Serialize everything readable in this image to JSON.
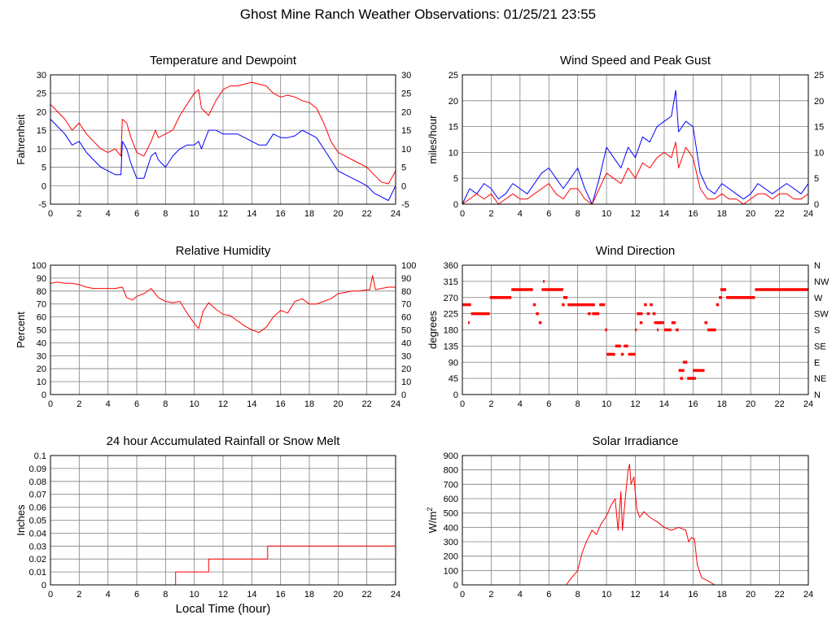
{
  "page": {
    "title": "Ghost Mine Ranch Weather Observations: 01/25/21 23:55"
  },
  "colors": {
    "red": "#ff0000",
    "blue": "#0000ff",
    "grid": "#808080",
    "frame": "#000000"
  },
  "chart_data": [
    {
      "id": "temp",
      "type": "line",
      "title": "Temperature and Dewpoint",
      "ylabel": "Fahrenheit",
      "xlabel": "",
      "xlim": [
        0,
        24
      ],
      "ylim": [
        -5,
        30
      ],
      "xticks": [
        0,
        2,
        4,
        6,
        8,
        10,
        12,
        14,
        16,
        18,
        20,
        22,
        24
      ],
      "yticks": [
        -5,
        0,
        5,
        10,
        15,
        20,
        25,
        30
      ],
      "right_yticks": [
        -5,
        0,
        5,
        10,
        15,
        20,
        25,
        30
      ],
      "grid": true,
      "series": [
        {
          "color": "#ff0000",
          "x": [
            0,
            0.5,
            1,
            1.5,
            2,
            2.5,
            3,
            3.5,
            4,
            4.5,
            4.9,
            5.0,
            5.3,
            5.6,
            6,
            6.5,
            7,
            7.3,
            7.5,
            8,
            8.5,
            9,
            9.5,
            10,
            10.3,
            10.5,
            11,
            11.5,
            12,
            12.5,
            13,
            13.5,
            14,
            14.5,
            15,
            15.5,
            16,
            16.5,
            17,
            17.5,
            18,
            18.5,
            19,
            19.5,
            20,
            20.5,
            21,
            21.5,
            22,
            22.5,
            23,
            23.5,
            24
          ],
          "values": [
            22,
            20,
            18,
            15,
            17,
            14,
            12,
            10,
            9,
            10,
            8,
            18,
            17,
            13,
            9,
            8,
            12,
            15,
            13,
            14,
            15,
            19,
            22,
            25,
            26,
            21,
            19,
            23,
            26,
            27,
            27,
            27.5,
            28,
            27.5,
            27,
            25,
            24,
            24.5,
            24,
            23,
            22.5,
            21,
            17,
            12,
            9,
            8,
            7,
            6,
            5,
            3,
            1,
            0.5,
            4
          ]
        },
        {
          "color": "#0000ff",
          "x": [
            0,
            0.5,
            1,
            1.5,
            2,
            2.5,
            3,
            3.5,
            4,
            4.5,
            4.9,
            5.0,
            5.3,
            5.6,
            6,
            6.5,
            7,
            7.3,
            7.5,
            8,
            8.5,
            9,
            9.5,
            10,
            10.3,
            10.5,
            11,
            11.5,
            12,
            12.5,
            13,
            13.5,
            14,
            14.5,
            15,
            15.5,
            16,
            16.5,
            17,
            17.5,
            18,
            18.5,
            19,
            19.5,
            20,
            20.5,
            21,
            21.5,
            22,
            22.5,
            23,
            23.5,
            24
          ],
          "values": [
            18,
            16,
            14,
            11,
            12,
            9,
            7,
            5,
            4,
            3,
            3,
            12,
            10,
            6,
            2,
            2,
            8,
            9,
            7,
            5,
            8,
            10,
            11,
            11,
            12,
            10,
            15,
            15,
            14,
            14,
            14,
            13,
            12,
            11,
            11,
            14,
            13,
            13,
            13.5,
            15,
            14,
            13,
            10,
            7,
            4,
            3,
            2,
            1,
            0,
            -2,
            -3,
            -4,
            0
          ]
        }
      ]
    },
    {
      "id": "wind",
      "type": "line",
      "title": "Wind Speed and Peak Gust",
      "ylabel": "miles/hour",
      "xlabel": "",
      "xlim": [
        0,
        24
      ],
      "ylim": [
        0,
        25
      ],
      "xticks": [
        0,
        2,
        4,
        6,
        8,
        10,
        12,
        14,
        16,
        18,
        20,
        22,
        24
      ],
      "yticks": [
        0,
        5,
        10,
        15,
        20,
        25
      ],
      "right_yticks": [
        0,
        5,
        10,
        15,
        20,
        25
      ],
      "grid": true,
      "series": [
        {
          "color": "#0000ff",
          "x": [
            0,
            0.5,
            1,
            1.5,
            2,
            2.5,
            3,
            3.5,
            4,
            4.5,
            5,
            5.5,
            6,
            6.5,
            7,
            7.5,
            8,
            8.5,
            9,
            9.5,
            10,
            10.5,
            11,
            11.5,
            12,
            12.5,
            13,
            13.5,
            14,
            14.5,
            14.8,
            15,
            15.5,
            16,
            16.5,
            17,
            17.5,
            18,
            18.5,
            19,
            19.5,
            20,
            20.5,
            21,
            21.5,
            22,
            22.5,
            23,
            23.5,
            24
          ],
          "values": [
            0,
            3,
            2,
            4,
            3,
            1,
            2,
            4,
            3,
            2,
            4,
            6,
            7,
            5,
            3,
            5,
            7,
            3,
            0,
            5,
            11,
            9,
            7,
            11,
            9,
            13,
            12,
            15,
            16,
            17,
            22,
            14,
            16,
            15,
            6,
            3,
            2,
            4,
            3,
            2,
            1,
            2,
            4,
            3,
            2,
            3,
            4,
            3,
            2,
            4
          ]
        },
        {
          "color": "#ff0000",
          "x": [
            0,
            0.5,
            1,
            1.5,
            2,
            2.5,
            3,
            3.5,
            4,
            4.5,
            5,
            5.5,
            6,
            6.5,
            7,
            7.5,
            8,
            8.5,
            9,
            9.5,
            10,
            10.5,
            11,
            11.5,
            12,
            12.5,
            13,
            13.5,
            14,
            14.5,
            14.8,
            15,
            15.5,
            16,
            16.5,
            17,
            17.5,
            18,
            18.5,
            19,
            19.5,
            20,
            20.5,
            21,
            21.5,
            22,
            22.5,
            23,
            23.5,
            24
          ],
          "values": [
            0,
            1,
            2,
            1,
            2,
            0,
            1,
            2,
            1,
            1,
            2,
            3,
            4,
            2,
            1,
            3,
            3,
            1,
            0,
            3,
            6,
            5,
            4,
            7,
            5,
            8,
            7,
            9,
            10,
            9,
            12,
            7,
            11,
            9,
            3,
            1,
            1,
            2,
            1,
            1,
            0,
            1,
            2,
            2,
            1,
            2,
            2,
            1,
            1,
            2
          ]
        }
      ]
    },
    {
      "id": "rh",
      "type": "line",
      "title": "Relative Humidity",
      "ylabel": "Percent",
      "xlabel": "",
      "xlim": [
        0,
        24
      ],
      "ylim": [
        0,
        100
      ],
      "xticks": [
        0,
        2,
        4,
        6,
        8,
        10,
        12,
        14,
        16,
        18,
        20,
        22,
        24
      ],
      "yticks": [
        0,
        10,
        20,
        30,
        40,
        50,
        60,
        70,
        80,
        90,
        100
      ],
      "right_yticks": [
        0,
        10,
        20,
        30,
        40,
        50,
        60,
        70,
        80,
        90,
        100
      ],
      "grid": true,
      "series": [
        {
          "color": "#ff0000",
          "x": [
            0,
            0.5,
            1,
            1.5,
            2,
            2.5,
            3,
            3.5,
            4,
            4.5,
            5,
            5.3,
            5.7,
            6,
            6.5,
            7,
            7.5,
            8,
            8.5,
            9,
            9.5,
            10,
            10.3,
            10.6,
            11,
            11.5,
            12,
            12.5,
            13,
            13.5,
            14,
            14.5,
            15,
            15.5,
            16,
            16.5,
            17,
            17.5,
            18,
            18.5,
            19,
            19.5,
            20,
            20.5,
            21,
            21.5,
            22,
            22.2,
            22.4,
            22.6,
            23,
            23.5,
            24
          ],
          "values": [
            86,
            87,
            86,
            86,
            85,
            83,
            82,
            82,
            82,
            82,
            83,
            75,
            73,
            76,
            78,
            82,
            75,
            72,
            71,
            72,
            63,
            55,
            51,
            64,
            71,
            66,
            62,
            61,
            57,
            53,
            50,
            48,
            52,
            60,
            65,
            63,
            72,
            74,
            70,
            70,
            72,
            74,
            78,
            79,
            80,
            80,
            81,
            81,
            92,
            81,
            82,
            83,
            83
          ]
        }
      ]
    },
    {
      "id": "winddir",
      "type": "scatter",
      "title": "Wind Direction",
      "ylabel": "degrees",
      "xlabel": "",
      "xlim": [
        0,
        24
      ],
      "ylim": [
        0,
        360
      ],
      "xticks": [
        0,
        2,
        4,
        6,
        8,
        10,
        12,
        14,
        16,
        18,
        20,
        22,
        24
      ],
      "yticks": [
        0,
        45,
        90,
        135,
        180,
        225,
        270,
        315,
        360
      ],
      "right_yticks": [
        "N",
        "NE",
        "E",
        "SE",
        "S",
        "SW",
        "W",
        "NW",
        "N"
      ],
      "grid": true,
      "series": [
        {
          "color": "#ff0000",
          "segments": [
            [
              0,
              0.6,
              250
            ],
            [
              0.4,
              0.5,
              200
            ],
            [
              0.6,
              1.9,
              225
            ],
            [
              1.9,
              3.4,
              270
            ],
            [
              3.4,
              4.9,
              292
            ],
            [
              4.9,
              5.1,
              250
            ],
            [
              5.1,
              5.3,
              225
            ],
            [
              5.3,
              5.5,
              200
            ],
            [
              5.6,
              5.7,
              315
            ],
            [
              5.5,
              7.0,
              292
            ],
            [
              7.0,
              7.3,
              270
            ],
            [
              6.9,
              7.1,
              250
            ],
            [
              7.3,
              9.2,
              250
            ],
            [
              8.7,
              8.9,
              225
            ],
            [
              9.0,
              9.5,
              225
            ],
            [
              9.5,
              9.9,
              250
            ],
            [
              9.9,
              10.05,
              180
            ],
            [
              10.0,
              10.6,
              112
            ],
            [
              10.6,
              11.0,
              135
            ],
            [
              11.0,
              11.2,
              112
            ],
            [
              11.2,
              11.5,
              135
            ],
            [
              11.5,
              12.0,
              112
            ],
            [
              12.0,
              12.1,
              180
            ],
            [
              12.1,
              12.5,
              225
            ],
            [
              12.3,
              12.5,
              200
            ],
            [
              12.6,
              12.8,
              250
            ],
            [
              12.8,
              13.0,
              225
            ],
            [
              13.0,
              13.2,
              250
            ],
            [
              13.2,
              13.4,
              225
            ],
            [
              13.3,
              14.0,
              200
            ],
            [
              13.5,
              13.6,
              180
            ],
            [
              14.0,
              14.5,
              180
            ],
            [
              14.5,
              14.8,
              200
            ],
            [
              14.8,
              15.0,
              180
            ],
            [
              15.0,
              15.4,
              67
            ],
            [
              15.1,
              15.3,
              45
            ],
            [
              15.3,
              15.6,
              90
            ],
            [
              15.6,
              16.2,
              45
            ],
            [
              16.0,
              16.8,
              67
            ],
            [
              16.8,
              17.0,
              200
            ],
            [
              17.0,
              17.6,
              180
            ],
            [
              17.6,
              17.8,
              250
            ],
            [
              17.8,
              18.0,
              270
            ],
            [
              17.9,
              18.3,
              292
            ],
            [
              18.3,
              20.3,
              270
            ],
            [
              20.3,
              24.0,
              292
            ]
          ]
        }
      ]
    },
    {
      "id": "rain",
      "type": "line",
      "title": "24 hour Accumulated Rainfall or Snow Melt",
      "ylabel": "Inches",
      "xlabel": "Local Time (hour)",
      "xlim": [
        0,
        24
      ],
      "ylim": [
        0,
        0.1
      ],
      "xticks": [
        0,
        2,
        4,
        6,
        8,
        10,
        12,
        14,
        16,
        18,
        20,
        22,
        24
      ],
      "yticks": [
        0,
        0.01,
        0.02,
        0.03,
        0.04,
        0.05,
        0.06,
        0.07,
        0.08,
        0.09,
        0.1
      ],
      "grid": true,
      "series": [
        {
          "color": "#ff0000",
          "x": [
            0,
            8.7,
            8.7,
            11.0,
            11.0,
            15.1,
            15.1,
            24
          ],
          "values": [
            0,
            0,
            0.01,
            0.01,
            0.02,
            0.02,
            0.03,
            0.03
          ]
        }
      ]
    },
    {
      "id": "solar",
      "type": "line",
      "title": "Solar Irradiance",
      "ylabel": "W/m2",
      "xlabel": "",
      "xlim": [
        0,
        24
      ],
      "ylim": [
        0,
        900
      ],
      "xticks": [
        0,
        2,
        4,
        6,
        8,
        10,
        12,
        14,
        16,
        18,
        20,
        22,
        24
      ],
      "yticks": [
        0,
        100,
        200,
        300,
        400,
        500,
        600,
        700,
        800,
        900
      ],
      "grid": true,
      "series": [
        {
          "color": "#ff0000",
          "x": [
            0,
            7.2,
            7.5,
            8.0,
            8.3,
            8.6,
            9.0,
            9.3,
            9.6,
            10.0,
            10.3,
            10.6,
            10.8,
            11.0,
            11.1,
            11.3,
            11.5,
            11.6,
            11.7,
            11.9,
            12.1,
            12.3,
            12.6,
            13.0,
            13.5,
            14.0,
            14.5,
            15.0,
            15.5,
            15.7,
            15.9,
            16.1,
            16.3,
            16.6,
            17.0,
            17.5,
            24
          ],
          "values": [
            0,
            0,
            40,
            100,
            220,
            300,
            380,
            350,
            420,
            480,
            550,
            600,
            380,
            650,
            380,
            600,
            800,
            840,
            700,
            750,
            530,
            470,
            510,
            470,
            440,
            400,
            380,
            400,
            380,
            300,
            330,
            320,
            140,
            50,
            30,
            0,
            0
          ]
        }
      ]
    }
  ]
}
